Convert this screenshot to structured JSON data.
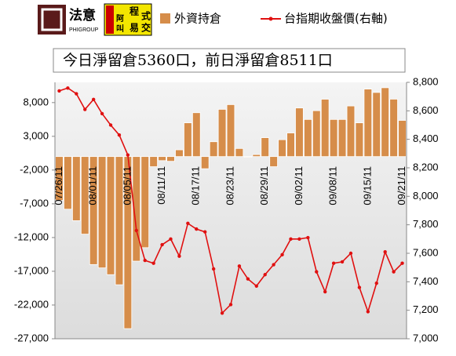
{
  "logos": {
    "left_main": "法意",
    "left_sub": "PHIGROUP",
    "right_chars": [
      "程",
      "式",
      "交",
      "易",
      "阿",
      "叫"
    ]
  },
  "chart_data": {
    "type": "bar",
    "title": "今日淨留倉5360口，前日淨留倉8511口",
    "categories": [
      "07/26/11",
      null,
      null,
      null,
      "08/01/11",
      null,
      null,
      null,
      "08/05/11",
      null,
      null,
      null,
      "08/11/11",
      null,
      null,
      null,
      "08/17/11",
      null,
      null,
      null,
      "08/23/11",
      null,
      null,
      null,
      "08/29/11",
      null,
      null,
      null,
      "09/02/11",
      null,
      null,
      null,
      "09/08/11",
      null,
      null,
      null,
      "09/15/11",
      null,
      null,
      null,
      "09/21/11"
    ],
    "series": [
      {
        "name": "外資持倉",
        "type": "bar",
        "color": "#d68d4a",
        "values": [
          -6500,
          -7800,
          -9500,
          -11500,
          -16000,
          -16500,
          -17500,
          -19000,
          -25500,
          -15500,
          -13500,
          -1500,
          -600,
          -700,
          1000,
          5000,
          6500,
          -1800,
          2200,
          7000,
          7700,
          1200,
          -100,
          300,
          2800,
          -1500,
          2500,
          3500,
          7200,
          5500,
          6800,
          8500,
          5500,
          5500,
          7500,
          5000,
          10000,
          9500,
          10200,
          8511,
          5360
        ]
      },
      {
        "name": "台指期收盤價(右軸)",
        "type": "line",
        "axis": "y2",
        "color": "#e01010",
        "values": [
          8740,
          8760,
          8720,
          8610,
          8680,
          8580,
          8500,
          8430,
          8290,
          7760,
          7550,
          7530,
          7660,
          7700,
          7580,
          7810,
          7770,
          7750,
          7490,
          7180,
          7240,
          7510,
          7420,
          7370,
          7450,
          7520,
          7590,
          7700,
          7700,
          7710,
          7470,
          7330,
          7530,
          7540,
          7600,
          7360,
          7190,
          7390,
          7610,
          7470,
          7530
        ]
      }
    ],
    "ylim": [
      -27000,
      11000
    ],
    "yticks": [
      {
        "value": -27000,
        "label": "-27,000"
      },
      {
        "value": -22000,
        "label": "-22,000"
      },
      {
        "value": -17000,
        "label": "-17,000"
      },
      {
        "value": -12000,
        "label": "-12,000"
      },
      {
        "value": -7000,
        "label": "-7,000"
      },
      {
        "value": -2000,
        "label": "-2,000"
      },
      {
        "value": 3000,
        "label": "3,000"
      },
      {
        "value": 8000,
        "label": "8,000"
      }
    ],
    "y2lim": [
      7000,
      8800
    ],
    "y2ticks": [
      {
        "value": 7000,
        "label": "7,000"
      },
      {
        "value": 7200,
        "label": "7,200"
      },
      {
        "value": 7400,
        "label": "7,400"
      },
      {
        "value": 7600,
        "label": "7,600"
      },
      {
        "value": 7800,
        "label": "7,800"
      },
      {
        "value": 8000,
        "label": "8,000"
      },
      {
        "value": 8200,
        "label": "8,200"
      },
      {
        "value": 8400,
        "label": "8,400"
      },
      {
        "value": 8600,
        "label": "8,600"
      },
      {
        "value": 8800,
        "label": "8,800"
      }
    ]
  }
}
